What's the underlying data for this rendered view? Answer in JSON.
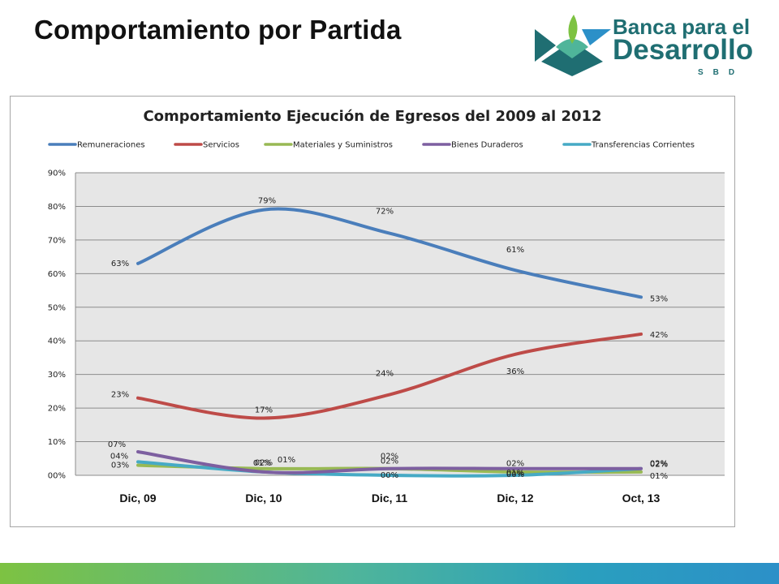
{
  "slide": {
    "title": "Comportamiento por Partida"
  },
  "logo": {
    "line1": "Banca para el",
    "line2": "Desarrollo",
    "line3": "SBD",
    "colors": {
      "green": "#7dc242",
      "teal": "#1f6e72",
      "blue": "#2c90c8"
    }
  },
  "chart_data": {
    "type": "line",
    "title": "Comportamiento Ejecución de Egresos del 2009 al 2012",
    "categories": [
      "Dic, 09",
      "Dic, 10",
      "Dic, 11",
      "Dic, 12",
      "Oct, 13"
    ],
    "ylim": [
      0,
      90
    ],
    "yticks": [
      0,
      10,
      20,
      30,
      40,
      50,
      60,
      70,
      80,
      90
    ],
    "ytick_labels": [
      "00%",
      "10%",
      "20%",
      "30%",
      "40%",
      "50%",
      "60%",
      "70%",
      "80%",
      "90%"
    ],
    "grid": true,
    "legend": "top",
    "plot_background": "#e6e6e6",
    "series": [
      {
        "name": "Remuneraciones",
        "color": "#4a7ebb",
        "values": [
          63,
          79,
          72,
          61,
          53
        ],
        "labels": [
          "63%",
          "79%",
          "72%",
          "61%",
          "53%"
        ]
      },
      {
        "name": "Servicios",
        "color": "#be4b48",
        "values": [
          23,
          17,
          24,
          36,
          42
        ],
        "labels": [
          "23%",
          "17%",
          "24%",
          "36%",
          "42%"
        ]
      },
      {
        "name": "Materiales y Suministros",
        "color": "#98b954",
        "values": [
          3,
          2,
          2,
          1,
          1
        ],
        "labels": [
          "03%",
          "02%",
          "02%",
          "01%",
          "01%"
        ]
      },
      {
        "name": "Bienes Duraderos",
        "color": "#7d5fa0",
        "values": [
          7,
          1,
          2,
          2,
          2
        ],
        "labels": [
          "07%",
          "01%",
          "02%",
          "02%",
          "02%"
        ]
      },
      {
        "name": "Transferencias Corrientes",
        "color": "#46aac5",
        "values": [
          4,
          1,
          0,
          0,
          2
        ],
        "labels": [
          "04%",
          "01%",
          "00%",
          "00%",
          "02%"
        ]
      }
    ]
  }
}
